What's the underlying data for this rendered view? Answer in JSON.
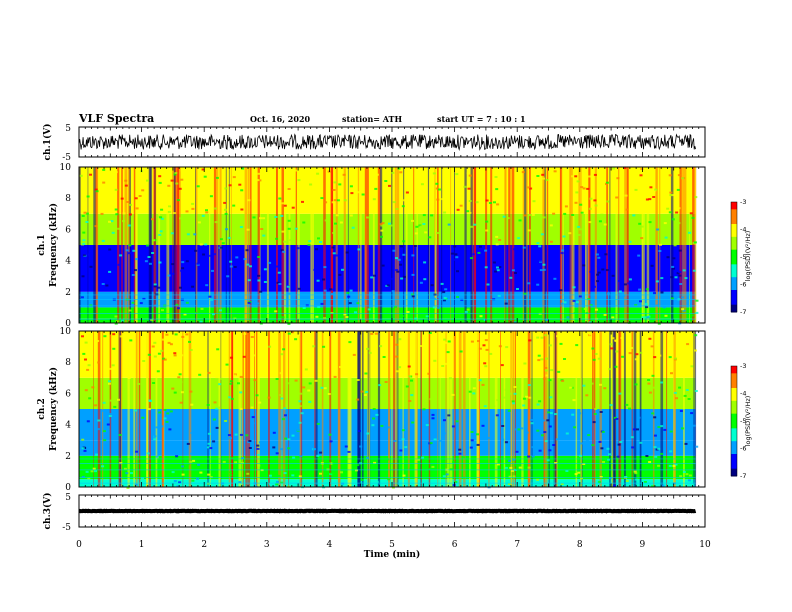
{
  "header": {
    "title": "VLF Spectra",
    "date": "Oct. 16, 2020",
    "station": "station= ATH",
    "start_time": "start UT = 7 : 10 : 1"
  },
  "colors": {
    "spectrum_scale": [
      "#000080",
      "#0000ff",
      "#00a0ff",
      "#00ffd0",
      "#00ff00",
      "#a0ff00",
      "#ffff00",
      "#ff8000",
      "#ff0000"
    ],
    "trace": "#000000"
  },
  "chart_data": [
    {
      "type": "line",
      "panel": "ch1-waveform",
      "ylabel": "ch.1(V)",
      "xlim": [
        0,
        10
      ],
      "data_end_min": 9.85,
      "ylim": [
        -5,
        5
      ],
      "yticks": [
        "5",
        "-5"
      ],
      "series_description_values": {
        "mean_v": 0,
        "amplitude_v": 2.5
      }
    },
    {
      "type": "heatmap",
      "panel": "ch1-spectrogram",
      "ylabel": "ch.1\nFrequency (kHz)",
      "xlabel": "",
      "xlim": [
        0,
        10
      ],
      "data_end_min": 9.85,
      "ylim": [
        0,
        10
      ],
      "yticks": [
        "0",
        "2",
        "4",
        "6",
        "8",
        "10"
      ],
      "colorbar": {
        "label": "log(PSD)(V²/Hz)",
        "range": [
          -7,
          -3
        ],
        "ticks": [
          "-3",
          "-4",
          "-5",
          "-6",
          "-7"
        ]
      },
      "bands": [
        {
          "f_range_khz": [
            0,
            0.3
          ],
          "log_psd": -5.2
        },
        {
          "f_range_khz": [
            0.3,
            1.0
          ],
          "log_psd": -4.8
        },
        {
          "f_range_khz": [
            1.0,
            2.0
          ],
          "log_psd": -6.0
        },
        {
          "f_range_khz": [
            2.0,
            5.0
          ],
          "log_psd": -6.3
        },
        {
          "f_range_khz": [
            5.0,
            7.0
          ],
          "log_psd": -4.7
        },
        {
          "f_range_khz": [
            7.0,
            10.0
          ],
          "log_psd": -4.0
        }
      ]
    },
    {
      "type": "heatmap",
      "panel": "ch2-spectrogram",
      "ylabel": "ch.2\nFrequency (kHz)",
      "xlim": [
        0,
        10
      ],
      "data_end_min": 9.85,
      "ylim": [
        0,
        10
      ],
      "yticks": [
        "0",
        "2",
        "4",
        "6",
        "8",
        "10"
      ],
      "colorbar": {
        "label": "log(PSD)(V²/Hz)",
        "range": [
          -7,
          -3
        ],
        "ticks": [
          "-3",
          "-4",
          "-5",
          "-6",
          "-7"
        ]
      },
      "bands": [
        {
          "f_range_khz": [
            0,
            0.5
          ],
          "log_psd": -5.3
        },
        {
          "f_range_khz": [
            0.5,
            2.0
          ],
          "log_psd": -4.9
        },
        {
          "f_range_khz": [
            2.0,
            3.0
          ],
          "log_psd": -6.2
        },
        {
          "f_range_khz": [
            3.0,
            5.0
          ],
          "log_psd": -5.8
        },
        {
          "f_range_khz": [
            5.0,
            7.0
          ],
          "log_psd": -4.6
        },
        {
          "f_range_khz": [
            7.0,
            10.0
          ],
          "log_psd": -4.1
        }
      ]
    },
    {
      "type": "line",
      "panel": "ch3-waveform",
      "ylabel": "ch.3(V)",
      "xlabel": "Time (min)",
      "xlim": [
        0,
        10
      ],
      "data_end_min": 9.85,
      "ylim": [
        -5,
        5
      ],
      "yticks": [
        "5",
        "-5"
      ],
      "xticks": [
        "0",
        "1",
        "2",
        "3",
        "4",
        "5",
        "6",
        "7",
        "8",
        "9",
        "10"
      ],
      "series_description_values": {
        "mean_v": 0,
        "amplitude_v": 0.3
      }
    }
  ]
}
